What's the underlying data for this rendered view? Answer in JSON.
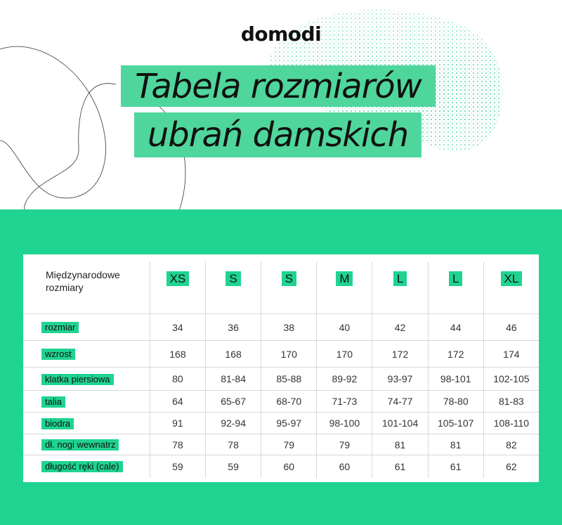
{
  "brand": {
    "logo": "domodi",
    "accent": "#1fd391"
  },
  "title": {
    "line1": "Tabela rozmiarów",
    "line2": "ubrań damskich"
  },
  "table": {
    "header_label": "Międzynarodowe rozmiary",
    "sizes": [
      "XS",
      "S",
      "S",
      "M",
      "L",
      "L",
      "XL"
    ],
    "rows": [
      {
        "label": "rozmiar",
        "values": [
          "34",
          "36",
          "38",
          "40",
          "42",
          "44",
          "46"
        ]
      },
      {
        "label": "wzrost",
        "values": [
          "168",
          "168",
          "170",
          "170",
          "172",
          "172",
          "174"
        ]
      },
      {
        "label": "klatka piersiowa",
        "values": [
          "80",
          "81-84",
          "85-88",
          "89-92",
          "93-97",
          "98-101",
          "102-105"
        ]
      },
      {
        "label": "talia",
        "values": [
          "64",
          "65-67",
          "68-70",
          "71-73",
          "74-77",
          "78-80",
          "81-83"
        ]
      },
      {
        "label": "biodra",
        "values": [
          "91",
          "92-94",
          "95-97",
          "98-100",
          "101-104",
          "105-107",
          "108-110"
        ]
      },
      {
        "label": "dł. nogi wewnatrz",
        "values": [
          "78",
          "78",
          "79",
          "79",
          "81",
          "81",
          "82"
        ]
      },
      {
        "label": "długość ręki (cale)",
        "values": [
          "59",
          "59",
          "60",
          "60",
          "61",
          "61",
          "62"
        ]
      }
    ]
  }
}
